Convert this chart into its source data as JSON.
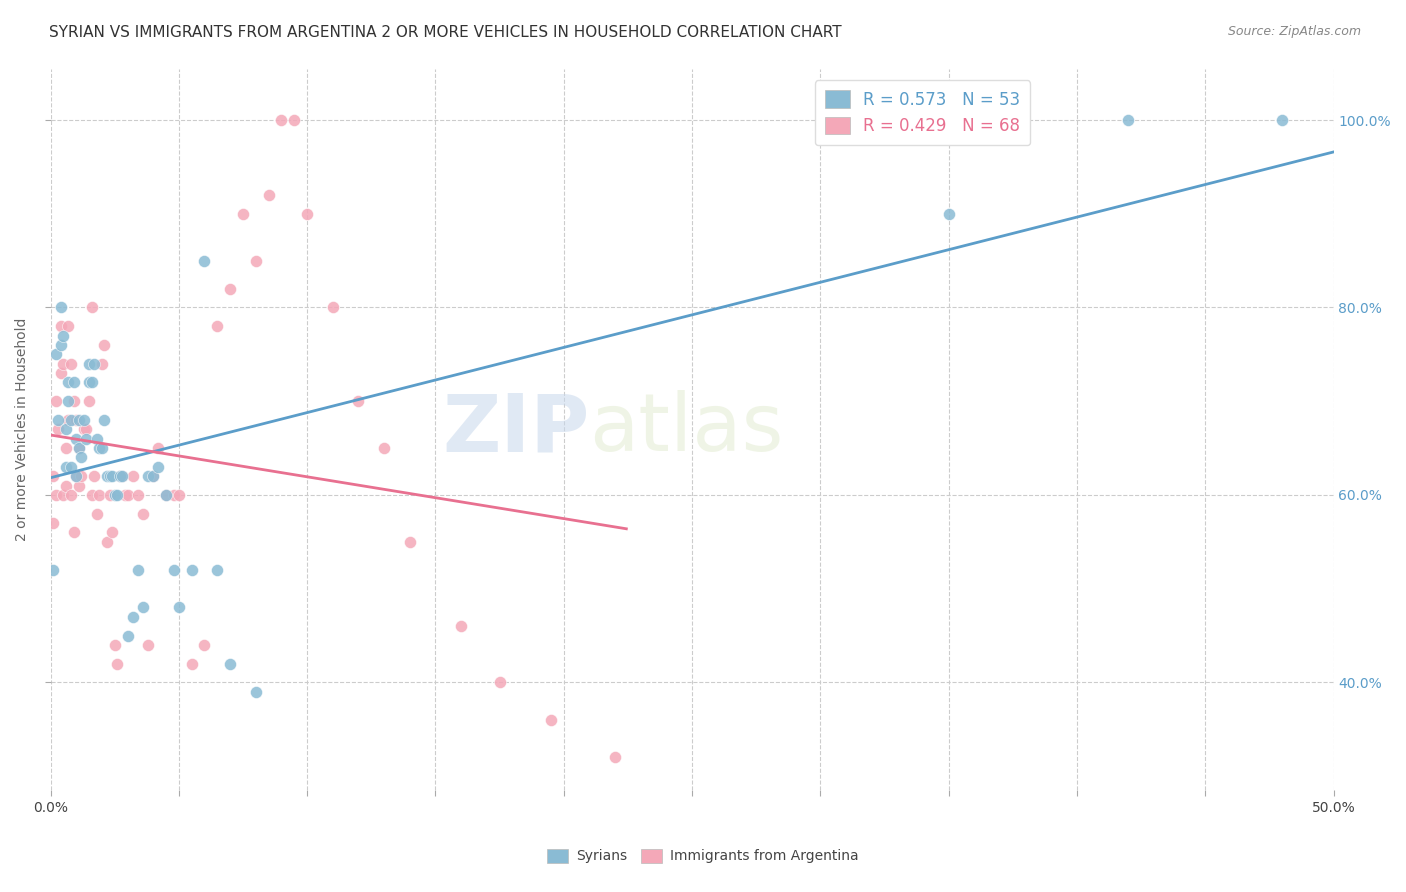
{
  "title": "SYRIAN VS IMMIGRANTS FROM ARGENTINA 2 OR MORE VEHICLES IN HOUSEHOLD CORRELATION CHART",
  "source": "Source: ZipAtlas.com",
  "ylabel": "2 or more Vehicles in Household",
  "ytick_labels": [
    "40.0%",
    "60.0%",
    "80.0%",
    "100.0%"
  ],
  "ytick_values": [
    0.4,
    0.6,
    0.8,
    1.0
  ],
  "xlim": [
    0.0,
    0.5
  ],
  "ylim": [
    0.285,
    1.055
  ],
  "legend_r1": "R = 0.573",
  "legend_n1": "N = 53",
  "legend_r2": "R = 0.429",
  "legend_n2": "N = 68",
  "syrians_color": "#8abbd4",
  "argentina_color": "#f4a8b8",
  "line_blue": "#5b9dc9",
  "line_pink": "#e87090",
  "watermark_zip": "ZIP",
  "watermark_atlas": "atlas",
  "syrians_x": [
    0.001,
    0.002,
    0.003,
    0.004,
    0.004,
    0.005,
    0.006,
    0.006,
    0.007,
    0.007,
    0.008,
    0.008,
    0.009,
    0.01,
    0.01,
    0.011,
    0.011,
    0.012,
    0.013,
    0.014,
    0.015,
    0.015,
    0.016,
    0.017,
    0.018,
    0.019,
    0.02,
    0.021,
    0.022,
    0.023,
    0.024,
    0.025,
    0.026,
    0.027,
    0.028,
    0.03,
    0.032,
    0.034,
    0.036,
    0.038,
    0.04,
    0.042,
    0.045,
    0.048,
    0.05,
    0.055,
    0.06,
    0.065,
    0.07,
    0.08,
    0.35,
    0.42,
    0.48
  ],
  "syrians_y": [
    0.52,
    0.75,
    0.68,
    0.76,
    0.8,
    0.77,
    0.63,
    0.67,
    0.7,
    0.72,
    0.63,
    0.68,
    0.72,
    0.62,
    0.66,
    0.65,
    0.68,
    0.64,
    0.68,
    0.66,
    0.72,
    0.74,
    0.72,
    0.74,
    0.66,
    0.65,
    0.65,
    0.68,
    0.62,
    0.62,
    0.62,
    0.6,
    0.6,
    0.62,
    0.62,
    0.45,
    0.47,
    0.52,
    0.48,
    0.62,
    0.62,
    0.63,
    0.6,
    0.52,
    0.48,
    0.52,
    0.85,
    0.52,
    0.42,
    0.39,
    0.9,
    1.0,
    1.0
  ],
  "argentina_x": [
    0.001,
    0.001,
    0.002,
    0.002,
    0.003,
    0.004,
    0.004,
    0.005,
    0.005,
    0.006,
    0.006,
    0.007,
    0.007,
    0.008,
    0.008,
    0.009,
    0.009,
    0.01,
    0.01,
    0.011,
    0.011,
    0.012,
    0.013,
    0.014,
    0.015,
    0.016,
    0.016,
    0.017,
    0.018,
    0.019,
    0.02,
    0.021,
    0.022,
    0.023,
    0.024,
    0.025,
    0.026,
    0.027,
    0.028,
    0.029,
    0.03,
    0.032,
    0.034,
    0.036,
    0.038,
    0.04,
    0.042,
    0.045,
    0.048,
    0.05,
    0.055,
    0.06,
    0.065,
    0.07,
    0.075,
    0.08,
    0.085,
    0.09,
    0.095,
    0.1,
    0.11,
    0.12,
    0.13,
    0.14,
    0.16,
    0.175,
    0.195,
    0.22
  ],
  "argentina_y": [
    0.57,
    0.62,
    0.6,
    0.7,
    0.67,
    0.73,
    0.78,
    0.6,
    0.74,
    0.61,
    0.65,
    0.68,
    0.78,
    0.6,
    0.74,
    0.56,
    0.7,
    0.68,
    0.62,
    0.61,
    0.65,
    0.62,
    0.67,
    0.67,
    0.7,
    0.6,
    0.8,
    0.62,
    0.58,
    0.6,
    0.74,
    0.76,
    0.55,
    0.6,
    0.56,
    0.44,
    0.42,
    0.62,
    0.62,
    0.6,
    0.6,
    0.62,
    0.6,
    0.58,
    0.44,
    0.62,
    0.65,
    0.6,
    0.6,
    0.6,
    0.42,
    0.44,
    0.78,
    0.82,
    0.9,
    0.85,
    0.92,
    1.0,
    1.0,
    0.9,
    0.8,
    0.7,
    0.65,
    0.55,
    0.46,
    0.4,
    0.36,
    0.32
  ]
}
